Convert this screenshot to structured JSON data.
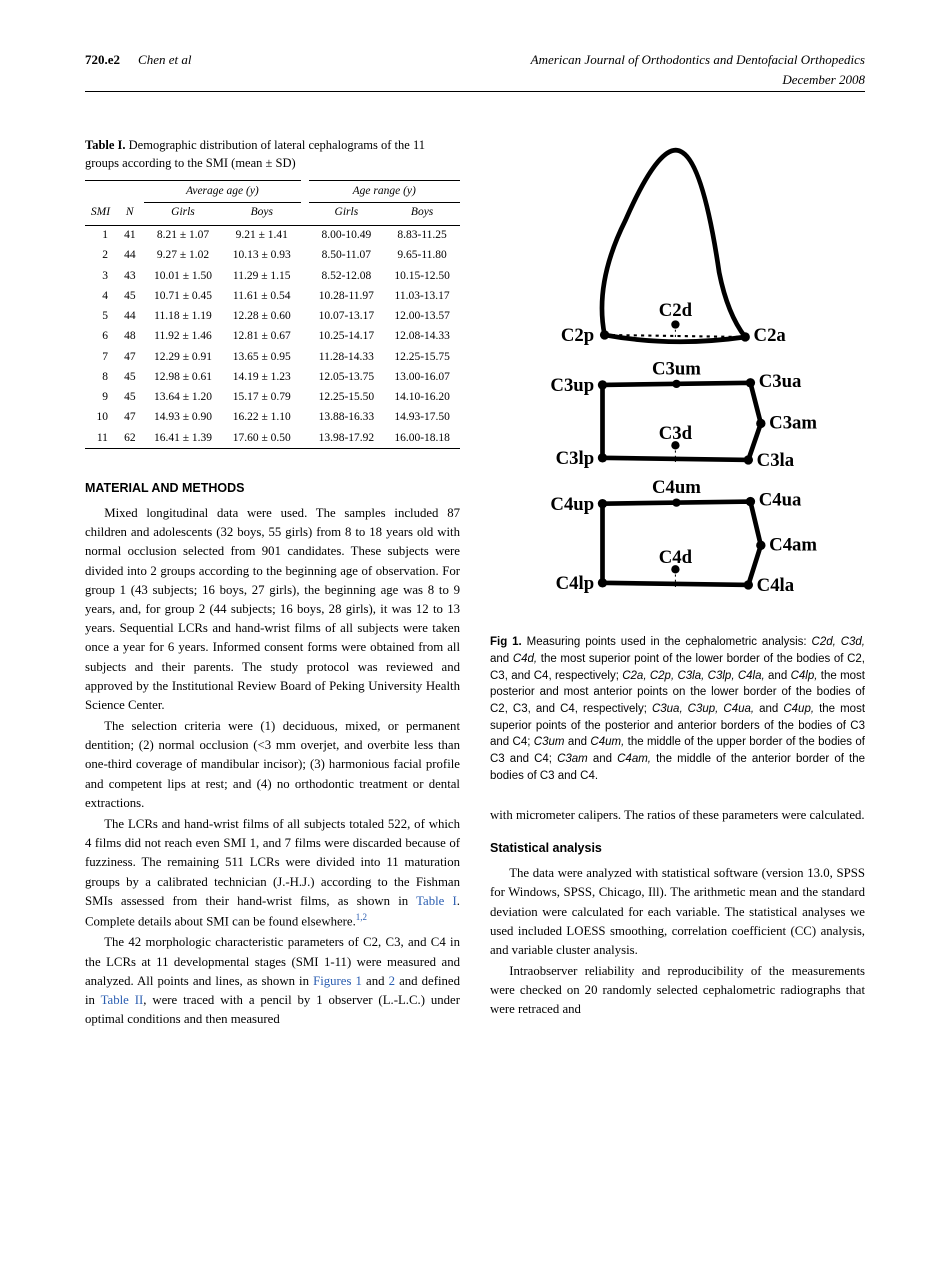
{
  "header": {
    "page": "720.e2",
    "authors": "Chen et al",
    "journal": "American Journal of Orthodontics and Dentofacial Orthopedics",
    "date": "December 2008"
  },
  "table1": {
    "label": "Table I.",
    "caption": "Demographic distribution of lateral cephalograms of the 11 groups according to the SMI (mean ± SD)",
    "spanner1": "Average age (y)",
    "spanner2": "Age range (y)",
    "col_smi": "SMI",
    "col_n": "N",
    "col_girls": "Girls",
    "col_boys": "Boys",
    "rows": [
      {
        "smi": "1",
        "n": "41",
        "ag": "8.21 ± 1.07",
        "ab": "9.21 ± 1.41",
        "rg": "8.00-10.49",
        "rb": "8.83-11.25"
      },
      {
        "smi": "2",
        "n": "44",
        "ag": "9.27 ± 1.02",
        "ab": "10.13 ± 0.93",
        "rg": "8.50-11.07",
        "rb": "9.65-11.80"
      },
      {
        "smi": "3",
        "n": "43",
        "ag": "10.01 ± 1.50",
        "ab": "11.29 ± 1.15",
        "rg": "8.52-12.08",
        "rb": "10.15-12.50"
      },
      {
        "smi": "4",
        "n": "45",
        "ag": "10.71 ± 0.45",
        "ab": "11.61 ± 0.54",
        "rg": "10.28-11.97",
        "rb": "11.03-13.17"
      },
      {
        "smi": "5",
        "n": "44",
        "ag": "11.18 ± 1.19",
        "ab": "12.28 ± 0.60",
        "rg": "10.07-13.17",
        "rb": "12.00-13.57"
      },
      {
        "smi": "6",
        "n": "48",
        "ag": "11.92 ± 1.46",
        "ab": "12.81 ± 0.67",
        "rg": "10.25-14.17",
        "rb": "12.08-14.33"
      },
      {
        "smi": "7",
        "n": "47",
        "ag": "12.29 ± 0.91",
        "ab": "13.65 ± 0.95",
        "rg": "11.28-14.33",
        "rb": "12.25-15.75"
      },
      {
        "smi": "8",
        "n": "45",
        "ag": "12.98 ± 0.61",
        "ab": "14.19 ± 1.23",
        "rg": "12.05-13.75",
        "rb": "13.00-16.07"
      },
      {
        "smi": "9",
        "n": "45",
        "ag": "13.64 ± 1.20",
        "ab": "15.17 ± 0.79",
        "rg": "12.25-15.50",
        "rb": "14.10-16.20"
      },
      {
        "smi": "10",
        "n": "47",
        "ag": "14.93 ± 0.90",
        "ab": "16.22 ± 1.10",
        "rg": "13.88-16.33",
        "rb": "14.93-17.50"
      },
      {
        "smi": "11",
        "n": "62",
        "ag": "16.41 ± 1.39",
        "ab": "17.60 ± 0.50",
        "rg": "13.98-17.92",
        "rb": "16.00-18.18"
      }
    ]
  },
  "sections": {
    "mm_heading": "MATERIAL AND METHODS",
    "mm_p1": "Mixed longitudinal data were used. The samples included 87 children and adolescents (32 boys, 55 girls) from 8 to 18 years old with normal occlusion selected from 901 candidates. These subjects were divided into 2 groups according to the beginning age of observation. For group 1 (43 subjects; 16 boys, 27 girls), the beginning age was 8 to 9 years, and, for group 2 (44 subjects; 16 boys, 28 girls), it was 12 to 13 years. Sequential LCRs and hand-wrist films of all subjects were taken once a year for 6 years. Informed consent forms were obtained from all subjects and their parents. The study protocol was reviewed and approved by the Institutional Review Board of Peking University Health Science Center.",
    "mm_p2": "The selection criteria were (1) deciduous, mixed, or permanent dentition; (2) normal occlusion (<3 mm overjet, and overbite less than one-third coverage of mandibular incisor); (3) harmonious facial profile and competent lips at rest; and (4) no orthodontic treatment or dental extractions.",
    "mm_p3a": "The LCRs and hand-wrist films of all subjects totaled 522, of which 4 films did not reach even SMI 1, and 7 films were discarded because of fuzziness. The remaining 511 LCRs were divided into 11 maturation groups by a calibrated technician (J.-H.J.) according to the Fishman SMIs assessed from their hand-wrist films, as shown in ",
    "mm_p3_link1": "Table I",
    "mm_p3b": ". Complete details about SMI can be found elsewhere.",
    "mm_p3_sup": "1,2",
    "mm_p4a": "The 42 morphologic characteristic parameters of C2, C3, and C4 in the LCRs at 11 developmental stages (SMI 1-11) were measured and analyzed. All points and lines, as shown in ",
    "mm_p4_link1": "Figures 1",
    "mm_p4_mid": " and ",
    "mm_p4_link2": "2",
    "mm_p4b": " and defined in ",
    "mm_p4_link3": "Table II",
    "mm_p4c": ", were traced with a pencil by 1 observer (L.-L.C.) under optimal conditions and then measured",
    "col2_p1": "with micrometer calipers. The ratios of these parameters were calculated.",
    "stat_heading": "Statistical analysis",
    "stat_p1": "The data were analyzed with statistical software (version 13.0, SPSS for Windows, SPSS, Chicago, Ill). The arithmetic mean and the standard deviation were calculated for each variable. The statistical analyses we used included LOESS smoothing, correlation coefficient (CC) analysis, and variable cluster analysis.",
    "stat_p2": "Intraobserver reliability and reproducibility of the measurements were checked on 20 randomly selected cephalometric radiographs that were retraced and"
  },
  "fig1": {
    "label": "Fig 1.",
    "caption_parts": [
      " Measuring points used in the cephalometric analysis: ",
      "C2d, C3d,",
      " and ",
      "C4d,",
      " the most superior point of the lower border of the bodies of C2, C3, and C4, respectively; ",
      "C2a, C2p, C3la, C3lp, C4la,",
      " and ",
      "C4lp,",
      " the most posterior and most anterior points on the lower border of the bodies of C2, C3, and C4, respectively; ",
      "C3ua, C3up, C4ua,",
      " and ",
      "C4up,",
      " the most superior points of the posterior and anterior borders of the bodies of C3 and C4; ",
      "C3um",
      " and ",
      "C4um,",
      " the middle of the upper border of the bodies of C3 and C4; ",
      "C3am",
      " and ",
      "C4am,",
      " the middle of the anterior border of the bodies of C3 and C4."
    ],
    "labels": {
      "c2d": "C2d",
      "c2p": "C2p",
      "c2a": "C2a",
      "c3um": "C3um",
      "c3up": "C3up",
      "c3ua": "C3ua",
      "c3am": "C3am",
      "c3d": "C3d",
      "c3lp": "C3lp",
      "c3la": "C3la",
      "c4um": "C4um",
      "c4up": "C4up",
      "c4ua": "C4ua",
      "c4am": "C4am",
      "c4d": "C4d",
      "c4lp": "C4lp",
      "c4la": "C4la"
    }
  }
}
